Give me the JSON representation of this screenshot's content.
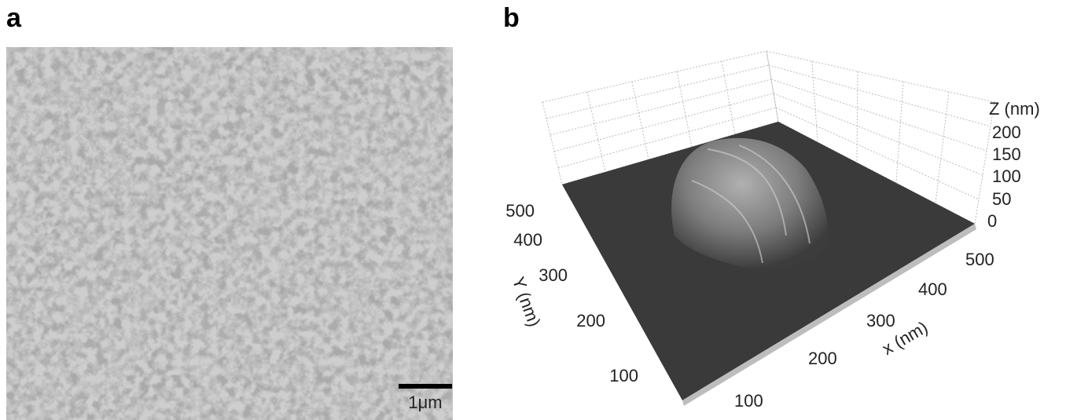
{
  "panels": [
    {
      "label": "a",
      "scale_bar": "1μm"
    },
    {
      "label": "b",
      "z_axis": {
        "label": "Z (nm)",
        "ticks": [
          200,
          150,
          100,
          50,
          0
        ]
      },
      "y_axis": {
        "label": "Y (nm)",
        "ticks": [
          500,
          400,
          300,
          200,
          100
        ]
      },
      "x_axis": {
        "label": "x (nm)",
        "ticks": [
          500,
          400,
          300,
          200,
          100
        ]
      }
    }
  ]
}
